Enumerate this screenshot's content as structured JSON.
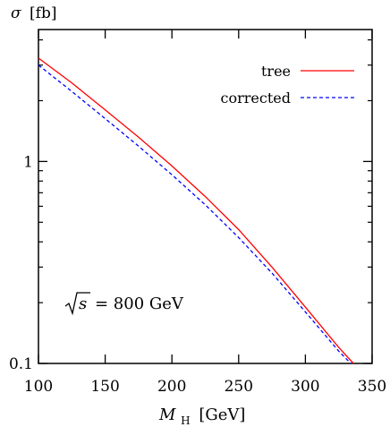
{
  "chart_data": {
    "type": "line",
    "title": "",
    "ylabel": {
      "main": "σ",
      "unit": "[fb]"
    },
    "xlabel": {
      "main": "M",
      "sub": "H",
      "unit": "[GeV]"
    },
    "yscale": "log",
    "xlim": [
      100,
      350
    ],
    "ylim": [
      0.1,
      4.5
    ],
    "x_ticks": [
      100,
      150,
      200,
      250,
      300,
      350
    ],
    "x_tick_labels": [
      "100",
      "150",
      "200",
      "250",
      "300",
      "350"
    ],
    "y_major_ticks": [
      0.1,
      1
    ],
    "y_major_tick_labels": [
      "0.1",
      "1"
    ],
    "y_minor_ticks": [
      0.2,
      0.3,
      0.4,
      0.5,
      0.6,
      0.7,
      0.8,
      0.9,
      2,
      3,
      4
    ],
    "grid": false,
    "legend_position": "top-right",
    "annotation": {
      "sqrt_arg": "s",
      "rest": "= 800 GeV"
    },
    "series": [
      {
        "name": "tree",
        "color": "#ff0000",
        "dash": "solid",
        "x": [
          100,
          125,
          150,
          175,
          200,
          225,
          250,
          275,
          300,
          325,
          336
        ],
        "y": [
          3.25,
          2.45,
          1.8,
          1.32,
          0.95,
          0.67,
          0.46,
          0.3,
          0.19,
          0.12,
          0.1
        ]
      },
      {
        "name": "corrected",
        "color": "#0000ff",
        "dash": "dashed",
        "x": [
          100,
          125,
          150,
          175,
          200,
          225,
          250,
          275,
          300,
          325,
          334
        ],
        "y": [
          3.0,
          2.22,
          1.63,
          1.19,
          0.86,
          0.61,
          0.42,
          0.28,
          0.18,
          0.115,
          0.1
        ]
      }
    ]
  }
}
